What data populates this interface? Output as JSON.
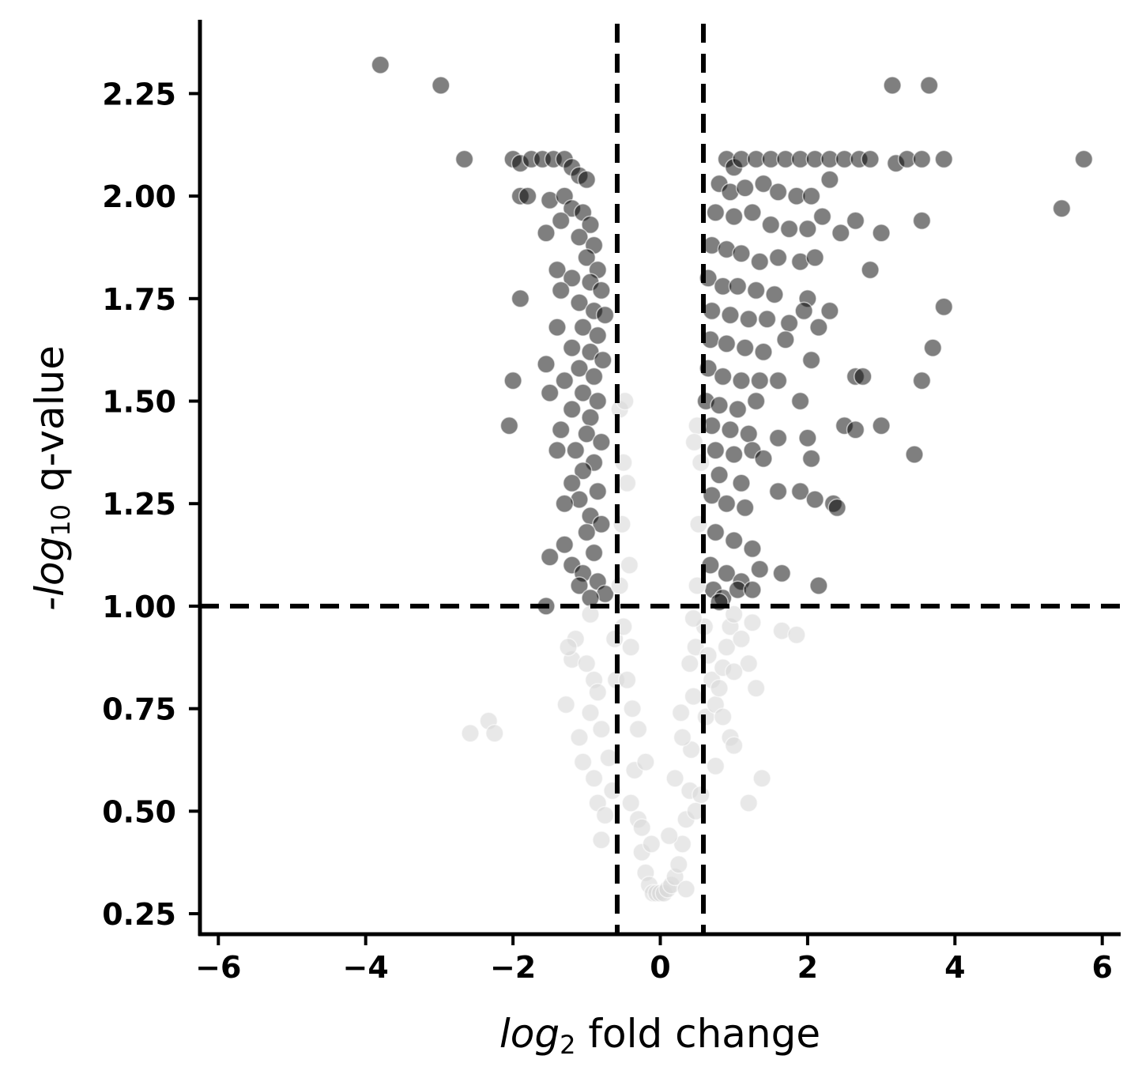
{
  "chart_data": {
    "type": "scatter",
    "title": "",
    "xlabel": {
      "base": "log",
      "sub": "2",
      "rest": " fold change"
    },
    "ylabel": {
      "prefix": "-",
      "base": "log",
      "sub": "10",
      "rest": " q-value"
    },
    "xlim": [
      -6.25,
      6.25
    ],
    "ylim": [
      0.2,
      2.43
    ],
    "x_ticks": [
      -6,
      -4,
      -2,
      0,
      2,
      4,
      6
    ],
    "x_tick_labels": [
      "−6",
      "−4",
      "−2",
      "0",
      "2",
      "4",
      "6"
    ],
    "y_ticks": [
      0.25,
      0.5,
      0.75,
      1.0,
      1.25,
      1.5,
      1.75,
      2.0,
      2.25
    ],
    "y_tick_labels": [
      "0.25",
      "0.50",
      "0.75",
      "1.00",
      "1.25",
      "1.50",
      "1.75",
      "2.00",
      "2.25"
    ],
    "thresholds": {
      "fold_change": [
        -0.585,
        0.585
      ],
      "q_value": 1.0
    },
    "grid": false,
    "colors": {
      "significant": "#000000",
      "not_significant": "#d9d9d9",
      "threshold_line": "#000000"
    },
    "series": [
      {
        "values": [
          [
            -3.8,
            2.32
          ],
          [
            -2.98,
            2.27
          ],
          [
            -2.66,
            2.09
          ],
          [
            -2.0,
            2.09
          ],
          [
            -1.9,
            2.08
          ],
          [
            -1.75,
            2.09
          ],
          [
            -1.6,
            2.09
          ],
          [
            -1.45,
            2.09
          ],
          [
            -1.3,
            2.09
          ],
          [
            -1.2,
            2.07
          ],
          [
            -1.1,
            2.05
          ],
          [
            -1.0,
            2.04
          ],
          [
            -1.9,
            2.0
          ],
          [
            -1.8,
            2.0
          ],
          [
            -1.5,
            1.99
          ],
          [
            -1.3,
            2.0
          ],
          [
            -1.2,
            1.97
          ],
          [
            -1.05,
            1.96
          ],
          [
            -0.95,
            1.93
          ],
          [
            -1.35,
            1.94
          ],
          [
            -1.55,
            1.91
          ],
          [
            -1.1,
            1.9
          ],
          [
            -0.9,
            1.88
          ],
          [
            -1.0,
            1.85
          ],
          [
            -0.85,
            1.82
          ],
          [
            -1.4,
            1.82
          ],
          [
            -1.2,
            1.8
          ],
          [
            -0.95,
            1.79
          ],
          [
            -0.8,
            1.77
          ],
          [
            -1.35,
            1.77
          ],
          [
            -1.9,
            1.75
          ],
          [
            -1.1,
            1.74
          ],
          [
            -0.9,
            1.72
          ],
          [
            -0.75,
            1.71
          ],
          [
            -1.4,
            1.68
          ],
          [
            -1.05,
            1.68
          ],
          [
            -0.85,
            1.66
          ],
          [
            -1.2,
            1.63
          ],
          [
            -0.95,
            1.62
          ],
          [
            -0.78,
            1.6
          ],
          [
            -1.55,
            1.59
          ],
          [
            -1.1,
            1.58
          ],
          [
            -0.9,
            1.56
          ],
          [
            -1.3,
            1.55
          ],
          [
            -2.0,
            1.55
          ],
          [
            -1.5,
            1.52
          ],
          [
            -1.05,
            1.52
          ],
          [
            -0.85,
            1.5
          ],
          [
            -1.2,
            1.48
          ],
          [
            -0.95,
            1.46
          ],
          [
            -1.35,
            1.43
          ],
          [
            -1.0,
            1.42
          ],
          [
            -2.05,
            1.44
          ],
          [
            -0.8,
            1.4
          ],
          [
            -1.15,
            1.38
          ],
          [
            -1.4,
            1.38
          ],
          [
            -0.9,
            1.35
          ],
          [
            -1.05,
            1.33
          ],
          [
            -1.2,
            1.3
          ],
          [
            -0.85,
            1.28
          ],
          [
            -1.1,
            1.26
          ],
          [
            -1.3,
            1.25
          ],
          [
            -0.95,
            1.22
          ],
          [
            -0.8,
            1.2
          ],
          [
            -1.0,
            1.18
          ],
          [
            -1.3,
            1.15
          ],
          [
            -0.9,
            1.13
          ],
          [
            -1.5,
            1.12
          ],
          [
            -1.2,
            1.1
          ],
          [
            -1.05,
            1.08
          ],
          [
            -0.85,
            1.06
          ],
          [
            -1.1,
            1.05
          ],
          [
            -0.75,
            1.03
          ],
          [
            -0.95,
            1.02
          ],
          [
            -1.55,
            1.0
          ],
          [
            0.9,
            2.09
          ],
          [
            1.0,
            2.07
          ],
          [
            1.1,
            2.09
          ],
          [
            1.3,
            2.09
          ],
          [
            1.5,
            2.09
          ],
          [
            1.7,
            2.09
          ],
          [
            1.9,
            2.09
          ],
          [
            2.1,
            2.09
          ],
          [
            2.3,
            2.09
          ],
          [
            2.5,
            2.09
          ],
          [
            2.7,
            2.09
          ],
          [
            2.85,
            2.09
          ],
          [
            3.2,
            2.08
          ],
          [
            3.35,
            2.09
          ],
          [
            3.55,
            2.09
          ],
          [
            3.85,
            2.09
          ],
          [
            3.15,
            2.27
          ],
          [
            3.65,
            2.27
          ],
          [
            5.75,
            2.09
          ],
          [
            5.45,
            1.97
          ],
          [
            0.8,
            2.03
          ],
          [
            0.95,
            2.01
          ],
          [
            1.15,
            2.02
          ],
          [
            1.4,
            2.03
          ],
          [
            1.6,
            2.01
          ],
          [
            1.85,
            2.0
          ],
          [
            2.05,
            2.0
          ],
          [
            2.3,
            2.04
          ],
          [
            2.2,
            1.95
          ],
          [
            0.75,
            1.96
          ],
          [
            1.0,
            1.95
          ],
          [
            1.25,
            1.96
          ],
          [
            1.5,
            1.93
          ],
          [
            1.75,
            1.92
          ],
          [
            2.0,
            1.92
          ],
          [
            2.45,
            1.91
          ],
          [
            2.65,
            1.94
          ],
          [
            3.0,
            1.91
          ],
          [
            3.55,
            1.94
          ],
          [
            0.7,
            1.88
          ],
          [
            0.9,
            1.87
          ],
          [
            1.1,
            1.86
          ],
          [
            1.35,
            1.84
          ],
          [
            1.6,
            1.85
          ],
          [
            1.9,
            1.84
          ],
          [
            2.1,
            1.85
          ],
          [
            2.85,
            1.82
          ],
          [
            0.65,
            1.8
          ],
          [
            0.85,
            1.78
          ],
          [
            1.05,
            1.78
          ],
          [
            1.3,
            1.77
          ],
          [
            1.55,
            1.76
          ],
          [
            2.0,
            1.75
          ],
          [
            0.7,
            1.72
          ],
          [
            0.95,
            1.71
          ],
          [
            1.2,
            1.7
          ],
          [
            1.45,
            1.7
          ],
          [
            1.75,
            1.69
          ],
          [
            1.95,
            1.72
          ],
          [
            2.3,
            1.72
          ],
          [
            3.85,
            1.73
          ],
          [
            0.68,
            1.65
          ],
          [
            0.9,
            1.64
          ],
          [
            1.15,
            1.63
          ],
          [
            1.4,
            1.62
          ],
          [
            1.7,
            1.65
          ],
          [
            2.05,
            1.6
          ],
          [
            2.15,
            1.68
          ],
          [
            3.7,
            1.63
          ],
          [
            0.65,
            1.58
          ],
          [
            0.85,
            1.56
          ],
          [
            1.1,
            1.55
          ],
          [
            1.35,
            1.55
          ],
          [
            1.6,
            1.55
          ],
          [
            2.65,
            1.56
          ],
          [
            2.75,
            1.56
          ],
          [
            3.55,
            1.55
          ],
          [
            0.62,
            1.5
          ],
          [
            0.8,
            1.49
          ],
          [
            1.05,
            1.48
          ],
          [
            1.3,
            1.5
          ],
          [
            1.9,
            1.5
          ],
          [
            0.7,
            1.44
          ],
          [
            0.95,
            1.43
          ],
          [
            1.2,
            1.42
          ],
          [
            2.5,
            1.44
          ],
          [
            2.65,
            1.43
          ],
          [
            3.0,
            1.44
          ],
          [
            0.75,
            1.38
          ],
          [
            1.0,
            1.37
          ],
          [
            1.25,
            1.38
          ],
          [
            1.6,
            1.41
          ],
          [
            2.0,
            1.41
          ],
          [
            2.05,
            1.36
          ],
          [
            3.45,
            1.37
          ],
          [
            0.8,
            1.32
          ],
          [
            1.1,
            1.3
          ],
          [
            1.4,
            1.36
          ],
          [
            0.7,
            1.27
          ],
          [
            0.9,
            1.25
          ],
          [
            1.15,
            1.24
          ],
          [
            1.6,
            1.28
          ],
          [
            1.9,
            1.28
          ],
          [
            2.1,
            1.26
          ],
          [
            2.35,
            1.25
          ],
          [
            2.4,
            1.24
          ],
          [
            0.75,
            1.18
          ],
          [
            1.0,
            1.16
          ],
          [
            1.25,
            1.14
          ],
          [
            0.68,
            1.1
          ],
          [
            0.9,
            1.08
          ],
          [
            1.1,
            1.06
          ],
          [
            1.35,
            1.09
          ],
          [
            1.65,
            1.08
          ],
          [
            2.15,
            1.05
          ],
          [
            0.72,
            1.04
          ],
          [
            0.85,
            1.02
          ],
          [
            1.05,
            1.04
          ],
          [
            0.8,
            1.01
          ],
          [
            1.25,
            1.04
          ]
        ]
      },
      {
        "values": [
          [
            -2.58,
            0.69
          ],
          [
            -2.33,
            0.72
          ],
          [
            -2.25,
            0.69
          ],
          [
            -1.28,
            0.76
          ],
          [
            -1.05,
            0.62
          ],
          [
            -1.2,
            0.87
          ],
          [
            -1.15,
            0.92
          ],
          [
            -1.25,
            0.9
          ],
          [
            -0.95,
            0.98
          ],
          [
            -1.0,
            0.86
          ],
          [
            -0.9,
            0.82
          ],
          [
            -1.1,
            0.68
          ],
          [
            -0.85,
            0.79
          ],
          [
            -0.95,
            0.74
          ],
          [
            -0.8,
            0.7
          ],
          [
            -0.9,
            0.58
          ],
          [
            -0.85,
            0.52
          ],
          [
            -0.75,
            0.49
          ],
          [
            -0.8,
            0.43
          ],
          [
            -0.65,
            0.55
          ],
          [
            -0.7,
            0.63
          ],
          [
            -0.6,
            0.82
          ],
          [
            -0.62,
            0.92
          ],
          [
            -0.55,
            1.05
          ],
          [
            -0.52,
            1.2
          ],
          [
            -0.5,
            1.35
          ],
          [
            -0.55,
            1.48
          ],
          [
            -0.48,
            1.5
          ],
          [
            -0.45,
            1.3
          ],
          [
            -0.42,
            1.1
          ],
          [
            -0.4,
            0.9
          ],
          [
            -0.38,
            0.75
          ],
          [
            -0.35,
            0.6
          ],
          [
            -0.3,
            0.48
          ],
          [
            -0.25,
            0.4
          ],
          [
            -0.2,
            0.35
          ],
          [
            -0.15,
            0.32
          ],
          [
            -0.1,
            0.3
          ],
          [
            -0.05,
            0.3
          ],
          [
            0.0,
            0.3
          ],
          [
            0.05,
            0.3
          ],
          [
            0.1,
            0.31
          ],
          [
            0.15,
            0.32
          ],
          [
            0.2,
            0.34
          ],
          [
            0.25,
            0.37
          ],
          [
            0.3,
            0.42
          ],
          [
            0.35,
            0.48
          ],
          [
            0.4,
            0.55
          ],
          [
            0.42,
            0.65
          ],
          [
            0.45,
            0.78
          ],
          [
            0.48,
            0.9
          ],
          [
            0.5,
            1.05
          ],
          [
            0.52,
            1.2
          ],
          [
            0.55,
            1.35
          ],
          [
            0.5,
            1.44
          ],
          [
            0.46,
            1.4
          ],
          [
            0.6,
            0.95
          ],
          [
            0.65,
            0.88
          ],
          [
            0.7,
            0.82
          ],
          [
            0.62,
            0.73
          ],
          [
            0.75,
            0.76
          ],
          [
            0.8,
            0.8
          ],
          [
            0.85,
            0.85
          ],
          [
            0.9,
            0.9
          ],
          [
            0.95,
            0.95
          ],
          [
            1.0,
            0.98
          ],
          [
            1.1,
            0.92
          ],
          [
            1.2,
            0.86
          ],
          [
            1.3,
            0.8
          ],
          [
            1.25,
            0.96
          ],
          [
            1.0,
            0.84
          ],
          [
            0.95,
            0.68
          ],
          [
            1.0,
            0.66
          ],
          [
            0.85,
            0.73
          ],
          [
            0.75,
            0.61
          ],
          [
            0.55,
            0.54
          ],
          [
            0.48,
            0.5
          ],
          [
            1.38,
            0.58
          ],
          [
            1.2,
            0.52
          ],
          [
            1.65,
            0.94
          ],
          [
            1.85,
            0.93
          ],
          [
            0.35,
            0.31
          ],
          [
            -0.25,
            0.46
          ],
          [
            -0.4,
            0.52
          ],
          [
            0.2,
            0.58
          ],
          [
            -0.2,
            0.62
          ],
          [
            0.3,
            0.68
          ],
          [
            -0.45,
            0.82
          ],
          [
            0.4,
            0.86
          ],
          [
            -0.5,
            0.95
          ],
          [
            0.45,
            0.97
          ],
          [
            -0.3,
            0.7
          ],
          [
            0.28,
            0.74
          ],
          [
            -0.12,
            0.42
          ],
          [
            0.12,
            0.44
          ]
        ]
      }
    ]
  }
}
